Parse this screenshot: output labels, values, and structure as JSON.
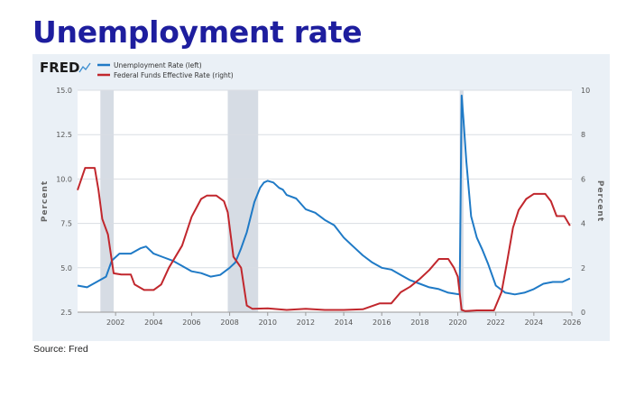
{
  "slide": {
    "title": "Unemployment rate",
    "source": "Source: Fred"
  },
  "chart_data": {
    "type": "line",
    "brand": "FRED",
    "legend_position": "top-left",
    "grid": true,
    "xlim": [
      2000.0,
      2026.0
    ],
    "x_ticks": [
      "2002",
      "2004",
      "2006",
      "2008",
      "2010",
      "2012",
      "2014",
      "2016",
      "2018",
      "2020",
      "2022",
      "2024",
      "2026"
    ],
    "x_tick_values": [
      2002,
      2004,
      2006,
      2008,
      2010,
      2012,
      2014,
      2016,
      2018,
      2020,
      2022,
      2024,
      2026
    ],
    "y_left": {
      "label": "Percent",
      "lim": [
        2.5,
        15.0
      ],
      "ticks": [
        "2.5",
        "5.0",
        "7.5",
        "10.0",
        "12.5",
        "15.0"
      ],
      "tick_values": [
        2.5,
        5.0,
        7.5,
        10.0,
        12.5,
        15.0
      ]
    },
    "y_right": {
      "label": "Percent",
      "lim": [
        0,
        10
      ],
      "ticks": [
        "0",
        "2",
        "4",
        "6",
        "8",
        "10"
      ],
      "tick_values": [
        0,
        2,
        4,
        6,
        8,
        10
      ]
    },
    "recessions": [
      [
        2001.2,
        2001.9
      ],
      [
        2007.9,
        2009.5
      ],
      [
        2020.1,
        2020.3
      ]
    ],
    "series": [
      {
        "name": "Unemployment Rate (left)",
        "axis": "left",
        "color": "#1f7ac6",
        "x": [
          2000.0,
          2000.5,
          2001.0,
          2001.5,
          2001.8,
          2002.2,
          2002.8,
          2003.3,
          2003.6,
          2004.0,
          2004.5,
          2005.0,
          2005.5,
          2006.0,
          2006.5,
          2007.0,
          2007.5,
          2008.0,
          2008.3,
          2008.6,
          2008.9,
          2009.3,
          2009.6,
          2009.8,
          2010.0,
          2010.3,
          2010.6,
          2010.8,
          2011.0,
          2011.5,
          2012.0,
          2012.5,
          2013.0,
          2013.5,
          2014.0,
          2014.5,
          2015.0,
          2015.5,
          2016.0,
          2016.5,
          2017.0,
          2017.5,
          2018.0,
          2018.5,
          2019.0,
          2019.5,
          2020.1,
          2020.2,
          2020.3,
          2020.45,
          2020.7,
          2021.0,
          2021.3,
          2021.6,
          2022.0,
          2022.5,
          2023.0,
          2023.5,
          2024.0,
          2024.5,
          2025.0,
          2025.5,
          2025.9
        ],
        "y": [
          4.0,
          3.9,
          4.2,
          4.5,
          5.4,
          5.8,
          5.8,
          6.1,
          6.2,
          5.8,
          5.6,
          5.4,
          5.1,
          4.8,
          4.7,
          4.5,
          4.6,
          5.0,
          5.3,
          6.1,
          7.0,
          8.7,
          9.5,
          9.8,
          9.9,
          9.8,
          9.5,
          9.4,
          9.1,
          8.9,
          8.3,
          8.1,
          7.7,
          7.4,
          6.7,
          6.2,
          5.7,
          5.3,
          5.0,
          4.9,
          4.6,
          4.3,
          4.1,
          3.9,
          3.8,
          3.6,
          3.5,
          14.7,
          13.3,
          11.0,
          7.9,
          6.7,
          6.0,
          5.2,
          4.0,
          3.6,
          3.5,
          3.6,
          3.8,
          4.1,
          4.2,
          4.2,
          4.4
        ]
      },
      {
        "name": "Federal Funds Effective Rate (right)",
        "axis": "right",
        "color": "#c1272d",
        "x": [
          2000.0,
          2000.4,
          2000.9,
          2001.1,
          2001.3,
          2001.6,
          2001.9,
          2002.3,
          2002.8,
          2003.0,
          2003.5,
          2004.0,
          2004.4,
          2004.8,
          2005.5,
          2006.0,
          2006.5,
          2006.8,
          2007.3,
          2007.7,
          2007.9,
          2008.2,
          2008.6,
          2008.9,
          2009.2,
          2010.0,
          2011.0,
          2012.0,
          2013.0,
          2014.0,
          2015.0,
          2015.9,
          2016.5,
          2017.0,
          2017.5,
          2018.0,
          2018.5,
          2019.0,
          2019.5,
          2019.8,
          2020.0,
          2020.2,
          2020.4,
          2021.0,
          2021.9,
          2022.3,
          2022.6,
          2022.9,
          2023.2,
          2023.6,
          2024.0,
          2024.6,
          2024.9,
          2025.2,
          2025.6,
          2025.9
        ],
        "y": [
          5.5,
          6.5,
          6.5,
          5.5,
          4.2,
          3.5,
          1.75,
          1.7,
          1.7,
          1.25,
          1.0,
          1.0,
          1.25,
          2.0,
          3.0,
          4.3,
          5.1,
          5.25,
          5.25,
          5.0,
          4.5,
          2.5,
          2.0,
          0.3,
          0.15,
          0.17,
          0.1,
          0.15,
          0.1,
          0.1,
          0.13,
          0.4,
          0.4,
          0.9,
          1.15,
          1.5,
          1.9,
          2.4,
          2.4,
          2.0,
          1.6,
          0.1,
          0.05,
          0.08,
          0.08,
          0.9,
          2.3,
          3.8,
          4.6,
          5.1,
          5.33,
          5.33,
          5.0,
          4.33,
          4.33,
          3.9
        ]
      }
    ]
  }
}
